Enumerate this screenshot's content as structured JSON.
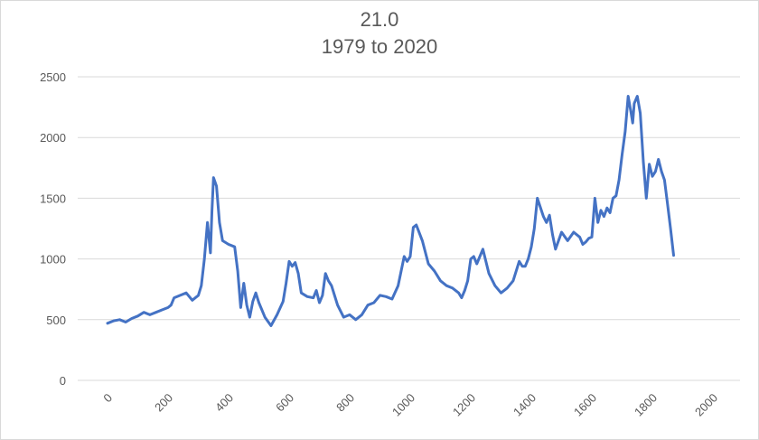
{
  "chart_data": {
    "type": "line",
    "title": "21.0",
    "subtitle": "1979 to 2020",
    "xlabel": "",
    "ylabel": "",
    "xlim": [
      0,
      2000
    ],
    "ylim": [
      0,
      2500
    ],
    "x_ticks": [
      0,
      200,
      400,
      600,
      800,
      1000,
      1200,
      1400,
      1600,
      1800,
      2000
    ],
    "y_ticks": [
      0,
      500,
      1000,
      1500,
      2000,
      2500
    ],
    "grid": true,
    "legend": "none",
    "line_color": "#4472c4",
    "series": [
      {
        "x": [
          0,
          20,
          40,
          60,
          80,
          100,
          120,
          140,
          160,
          180,
          200,
          210,
          220,
          240,
          260,
          280,
          300,
          310,
          320,
          330,
          340,
          345,
          350,
          360,
          370,
          380,
          400,
          420,
          430,
          440,
          450,
          460,
          470,
          480,
          490,
          500,
          520,
          540,
          560,
          580,
          590,
          600,
          610,
          620,
          630,
          640,
          660,
          680,
          690,
          700,
          710,
          720,
          730,
          740,
          760,
          780,
          800,
          820,
          840,
          860,
          880,
          900,
          920,
          940,
          960,
          980,
          990,
          1000,
          1010,
          1020,
          1040,
          1060,
          1080,
          1100,
          1120,
          1140,
          1160,
          1170,
          1180,
          1190,
          1200,
          1210,
          1220,
          1240,
          1260,
          1280,
          1300,
          1320,
          1340,
          1360,
          1370,
          1380,
          1390,
          1400,
          1410,
          1420,
          1440,
          1450,
          1460,
          1470,
          1480,
          1500,
          1520,
          1540,
          1560,
          1570,
          1580,
          1590,
          1600,
          1610,
          1620,
          1630,
          1640,
          1650,
          1660,
          1670,
          1680,
          1690,
          1700,
          1710,
          1720,
          1730,
          1735,
          1740,
          1750,
          1760,
          1770,
          1780,
          1790,
          1800,
          1810,
          1820,
          1830,
          1840,
          1850,
          1860,
          1870
        ],
        "y": [
          470,
          490,
          500,
          480,
          510,
          530,
          560,
          540,
          560,
          580,
          600,
          620,
          680,
          700,
          720,
          660,
          700,
          780,
          1000,
          1300,
          1050,
          1400,
          1670,
          1600,
          1300,
          1150,
          1120,
          1100,
          900,
          600,
          800,
          620,
          520,
          650,
          720,
          640,
          520,
          450,
          540,
          650,
          800,
          980,
          940,
          970,
          880,
          720,
          690,
          680,
          740,
          640,
          700,
          880,
          820,
          780,
          620,
          520,
          540,
          500,
          540,
          620,
          640,
          700,
          690,
          670,
          780,
          1020,
          980,
          1020,
          1260,
          1280,
          1150,
          960,
          900,
          820,
          780,
          760,
          720,
          680,
          740,
          820,
          1000,
          1020,
          960,
          1080,
          880,
          780,
          720,
          760,
          820,
          980,
          940,
          940,
          1000,
          1100,
          1250,
          1500,
          1350,
          1300,
          1360,
          1200,
          1080,
          1220,
          1150,
          1220,
          1180,
          1120,
          1140,
          1170,
          1180,
          1500,
          1300,
          1400,
          1350,
          1420,
          1380,
          1500,
          1520,
          1650,
          1860,
          2050,
          2340,
          2200,
          2120,
          2280,
          2340,
          2200,
          1800,
          1500,
          1780,
          1680,
          1720,
          1820,
          1720,
          1650,
          1450,
          1250,
          1030
        ]
      }
    ]
  }
}
